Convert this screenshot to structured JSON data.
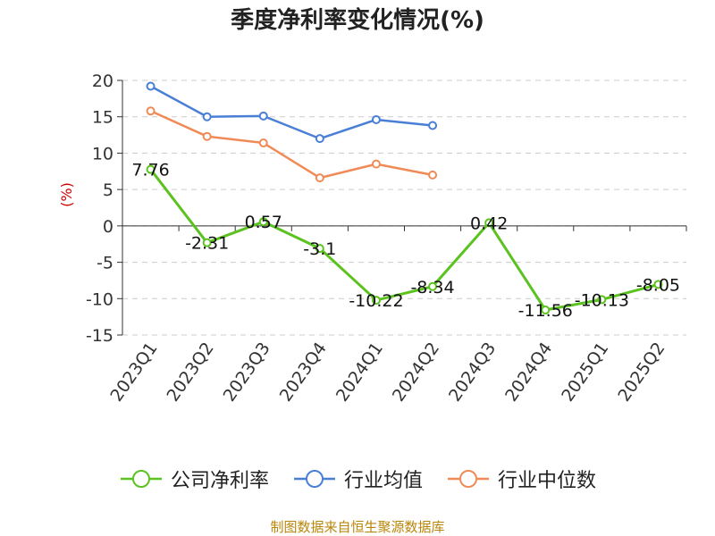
{
  "chart_data": {
    "type": "line",
    "title": "季度净利率变化情况(%)",
    "ylabel": "(%)",
    "xlabel": "",
    "ylim": [
      -15,
      20
    ],
    "yticks": [
      20,
      15,
      10,
      5,
      0,
      -5,
      -10,
      -15
    ],
    "grid": true,
    "legend_position": "bottom",
    "categories": [
      "2023Q1",
      "2023Q2",
      "2023Q3",
      "2023Q4",
      "2024Q1",
      "2024Q2",
      "2024Q3",
      "2024Q4",
      "2025Q1",
      "2025Q2"
    ],
    "series": [
      {
        "name": "公司净利率",
        "color": "#5bc21f",
        "values": [
          7.76,
          -2.31,
          0.57,
          -3.1,
          -10.22,
          -8.34,
          0.42,
          -11.56,
          -10.13,
          -8.05
        ],
        "labels": [
          "7.76",
          "-2.31",
          "0.57",
          "-3.1",
          "-10.22",
          "-8.34",
          "0.42",
          "-11.56",
          "-10.13",
          "-8.05"
        ]
      },
      {
        "name": "行业均值",
        "color": "#4a7fd6",
        "values": [
          19.2,
          15.0,
          15.1,
          12.0,
          14.6,
          13.8,
          null,
          null,
          null,
          null
        ]
      },
      {
        "name": "行业中位数",
        "color": "#f08a56",
        "values": [
          15.8,
          12.3,
          11.4,
          6.6,
          8.5,
          7.0,
          null,
          null,
          null,
          null
        ]
      }
    ],
    "source": "制图数据来自恒生聚源数据库"
  }
}
